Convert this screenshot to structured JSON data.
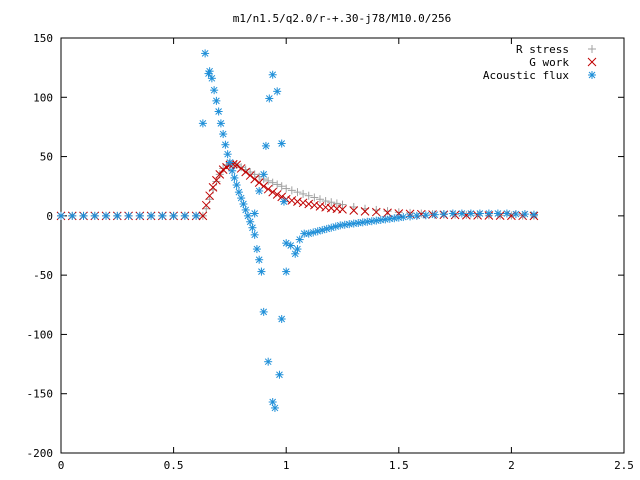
{
  "chart_data": {
    "type": "scatter",
    "title": "m1/n1.5/q2.0/r-+.30-j78/M10.0/256",
    "xlabel": "",
    "ylabel": "",
    "xlim": [
      0,
      2.5
    ],
    "ylim": [
      -200,
      150
    ],
    "x_ticks": [
      0,
      0.5,
      1,
      1.5,
      2,
      2.5
    ],
    "x_tick_labels": [
      "0",
      "0.5",
      "1",
      "1.5",
      "2",
      "2.5"
    ],
    "y_ticks": [
      -200,
      -150,
      -100,
      -50,
      0,
      50,
      100,
      150
    ],
    "y_tick_labels": [
      "-200",
      "-150",
      "-100",
      "-50",
      "0",
      "50",
      "100",
      "150"
    ],
    "grid": false,
    "legend_position": "top-right",
    "series": [
      {
        "name": "R stress",
        "marker": "plus",
        "color": "#a0a0a0",
        "points": [
          [
            0.0,
            0
          ],
          [
            0.05,
            0
          ],
          [
            0.1,
            0
          ],
          [
            0.15,
            0
          ],
          [
            0.2,
            0
          ],
          [
            0.25,
            0
          ],
          [
            0.3,
            0
          ],
          [
            0.35,
            0
          ],
          [
            0.4,
            0
          ],
          [
            0.45,
            0
          ],
          [
            0.5,
            0
          ],
          [
            0.55,
            0
          ],
          [
            0.6,
            0
          ],
          [
            0.63,
            0
          ],
          [
            0.645,
            6
          ],
          [
            0.66,
            14
          ],
          [
            0.675,
            22
          ],
          [
            0.69,
            29
          ],
          [
            0.705,
            35
          ],
          [
            0.72,
            40
          ],
          [
            0.735,
            43
          ],
          [
            0.75,
            44
          ],
          [
            0.765,
            44
          ],
          [
            0.78,
            43
          ],
          [
            0.8,
            41
          ],
          [
            0.82,
            39
          ],
          [
            0.84,
            37
          ],
          [
            0.86,
            35
          ],
          [
            0.88,
            33
          ],
          [
            0.9,
            31
          ],
          [
            0.92,
            29.5
          ],
          [
            0.94,
            28
          ],
          [
            0.96,
            26.5
          ],
          [
            0.98,
            25
          ],
          [
            1.0,
            23
          ],
          [
            1.025,
            21.5
          ],
          [
            1.05,
            20
          ],
          [
            1.075,
            18.5
          ],
          [
            1.1,
            17
          ],
          [
            1.125,
            15.5
          ],
          [
            1.15,
            14
          ],
          [
            1.175,
            12.5
          ],
          [
            1.2,
            11.5
          ],
          [
            1.225,
            10.5
          ],
          [
            1.25,
            9.5
          ],
          [
            1.3,
            7.5
          ],
          [
            1.35,
            6
          ],
          [
            1.4,
            5
          ],
          [
            1.45,
            4
          ],
          [
            1.5,
            3
          ],
          [
            1.55,
            2.5
          ],
          [
            1.6,
            2
          ],
          [
            1.65,
            1.5
          ],
          [
            1.7,
            1.2
          ],
          [
            1.75,
            1
          ],
          [
            1.8,
            0.8
          ],
          [
            1.85,
            0.6
          ],
          [
            1.9,
            0.5
          ],
          [
            1.95,
            0.4
          ],
          [
            2.0,
            0.3
          ],
          [
            2.05,
            0.2
          ],
          [
            2.1,
            0.1
          ]
        ]
      },
      {
        "name": "G work",
        "marker": "cross",
        "color": "#c00000",
        "points": [
          [
            0.0,
            0
          ],
          [
            0.05,
            0
          ],
          [
            0.1,
            0
          ],
          [
            0.15,
            0
          ],
          [
            0.2,
            0
          ],
          [
            0.25,
            0
          ],
          [
            0.3,
            0
          ],
          [
            0.35,
            0
          ],
          [
            0.4,
            0
          ],
          [
            0.45,
            0
          ],
          [
            0.5,
            0
          ],
          [
            0.55,
            0
          ],
          [
            0.6,
            0
          ],
          [
            0.63,
            0
          ],
          [
            0.645,
            9
          ],
          [
            0.66,
            17
          ],
          [
            0.675,
            24
          ],
          [
            0.69,
            30
          ],
          [
            0.705,
            35
          ],
          [
            0.72,
            39
          ],
          [
            0.735,
            41
          ],
          [
            0.75,
            43
          ],
          [
            0.765,
            43.5
          ],
          [
            0.78,
            43
          ],
          [
            0.8,
            40
          ],
          [
            0.82,
            37
          ],
          [
            0.84,
            34
          ],
          [
            0.86,
            31
          ],
          [
            0.88,
            28
          ],
          [
            0.9,
            25
          ],
          [
            0.92,
            22.5
          ],
          [
            0.94,
            20
          ],
          [
            0.96,
            18
          ],
          [
            0.98,
            16
          ],
          [
            1.0,
            14
          ],
          [
            1.025,
            13
          ],
          [
            1.05,
            12
          ],
          [
            1.075,
            11
          ],
          [
            1.1,
            10
          ],
          [
            1.125,
            9
          ],
          [
            1.15,
            8
          ],
          [
            1.175,
            7.2
          ],
          [
            1.2,
            6.5
          ],
          [
            1.225,
            6
          ],
          [
            1.25,
            5.5
          ],
          [
            1.3,
            4.5
          ],
          [
            1.35,
            3.8
          ],
          [
            1.4,
            3.2
          ],
          [
            1.45,
            2.6
          ],
          [
            1.5,
            2
          ],
          [
            1.55,
            1.7
          ],
          [
            1.6,
            1.4
          ],
          [
            1.65,
            1.1
          ],
          [
            1.7,
            0.9
          ],
          [
            1.75,
            0.7
          ],
          [
            1.8,
            0.5
          ],
          [
            1.85,
            0.4
          ],
          [
            1.9,
            0.3
          ],
          [
            1.95,
            0.2
          ],
          [
            2.0,
            0.1
          ],
          [
            2.05,
            0.05
          ],
          [
            2.1,
            0
          ]
        ]
      },
      {
        "name": "Acoustic flux",
        "marker": "star",
        "color": "#1f8fd8",
        "points": [
          [
            0.0,
            0
          ],
          [
            0.05,
            0
          ],
          [
            0.1,
            0
          ],
          [
            0.15,
            0
          ],
          [
            0.2,
            0
          ],
          [
            0.25,
            0
          ],
          [
            0.3,
            0
          ],
          [
            0.35,
            0
          ],
          [
            0.4,
            0
          ],
          [
            0.45,
            0
          ],
          [
            0.5,
            0
          ],
          [
            0.55,
            0
          ],
          [
            0.6,
            0
          ],
          [
            0.63,
            78
          ],
          [
            0.64,
            137
          ],
          [
            0.655,
            120
          ],
          [
            0.66,
            122
          ],
          [
            0.67,
            116
          ],
          [
            0.68,
            106
          ],
          [
            0.69,
            97
          ],
          [
            0.7,
            88
          ],
          [
            0.71,
            78
          ],
          [
            0.72,
            69
          ],
          [
            0.73,
            60
          ],
          [
            0.74,
            52
          ],
          [
            0.75,
            45
          ],
          [
            0.76,
            38
          ],
          [
            0.77,
            32
          ],
          [
            0.78,
            26
          ],
          [
            0.79,
            20
          ],
          [
            0.8,
            15
          ],
          [
            0.81,
            10
          ],
          [
            0.82,
            5
          ],
          [
            0.83,
            0
          ],
          [
            0.84,
            -5
          ],
          [
            0.85,
            -10
          ],
          [
            0.86,
            -16
          ],
          [
            0.87,
            -28
          ],
          [
            0.88,
            -37
          ],
          [
            0.89,
            -47
          ],
          [
            0.9,
            -81
          ],
          [
            0.92,
            -123
          ],
          [
            0.94,
            -157
          ],
          [
            0.95,
            -162
          ],
          [
            0.97,
            -134
          ],
          [
            0.98,
            -87
          ],
          [
            1.0,
            -47
          ],
          [
            0.86,
            2
          ],
          [
            0.88,
            21
          ],
          [
            0.9,
            35
          ],
          [
            0.91,
            59
          ],
          [
            0.925,
            99
          ],
          [
            0.94,
            119
          ],
          [
            0.96,
            105
          ],
          [
            0.98,
            61
          ],
          [
            0.99,
            12
          ],
          [
            1.0,
            -23
          ],
          [
            1.02,
            -25
          ],
          [
            1.04,
            -32
          ],
          [
            1.05,
            -28
          ],
          [
            1.06,
            -20
          ],
          [
            1.08,
            -15
          ],
          [
            1.1,
            -15
          ],
          [
            1.12,
            -14
          ],
          [
            1.14,
            -13
          ],
          [
            1.16,
            -12
          ],
          [
            1.18,
            -11
          ],
          [
            1.2,
            -10
          ],
          [
            1.22,
            -9
          ],
          [
            1.24,
            -8
          ],
          [
            1.26,
            -7.5
          ],
          [
            1.28,
            -7
          ],
          [
            1.3,
            -6.5
          ],
          [
            1.32,
            -6
          ],
          [
            1.34,
            -5.5
          ],
          [
            1.36,
            -5
          ],
          [
            1.38,
            -4.5
          ],
          [
            1.4,
            -4
          ],
          [
            1.42,
            -3.5
          ],
          [
            1.44,
            -3
          ],
          [
            1.46,
            -2.5
          ],
          [
            1.48,
            -2
          ],
          [
            1.5,
            -1.5
          ],
          [
            1.52,
            -1
          ],
          [
            1.55,
            -0.5
          ],
          [
            1.58,
            0
          ],
          [
            1.62,
            0.5
          ],
          [
            1.66,
            1
          ],
          [
            1.7,
            1.5
          ],
          [
            1.74,
            2
          ],
          [
            1.78,
            2
          ],
          [
            1.82,
            2
          ],
          [
            1.86,
            2
          ],
          [
            1.9,
            2
          ],
          [
            1.94,
            2
          ],
          [
            1.98,
            2
          ],
          [
            2.02,
            1.5
          ],
          [
            2.06,
            1.5
          ],
          [
            2.1,
            1
          ]
        ]
      }
    ]
  }
}
